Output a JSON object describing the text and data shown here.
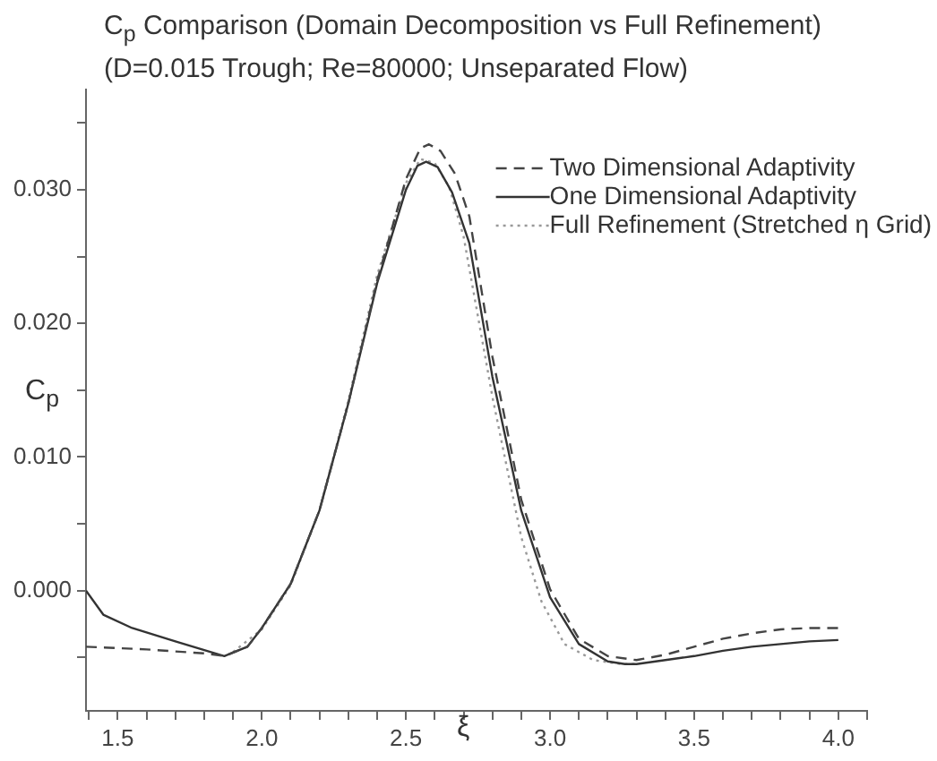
{
  "chart_data": {
    "type": "line",
    "title": "C$_{p}$ Comparison (Domain Decomposition vs Full Refinement)",
    "subtitle": "(D=0.015 Trough; Re=80000; Unseparated Flow)",
    "xlabel": "ξ",
    "ylabel": "C$_{p}$",
    "xlim": [
      1.39,
      4.1
    ],
    "ylim": [
      -0.009,
      0.0375
    ],
    "xticks": [
      {
        "value": 1.4,
        "label": null
      },
      1.5,
      {
        "value": 1.6,
        "label": null
      },
      {
        "value": 1.7,
        "label": null
      },
      {
        "value": 1.8,
        "label": null
      },
      {
        "value": 1.9,
        "label": null
      },
      {
        "value": 2.0,
        "label": "2.0"
      },
      {
        "value": 2.1,
        "label": null
      },
      {
        "value": 2.2,
        "label": null
      },
      {
        "value": 2.3,
        "label": null
      },
      {
        "value": 2.4,
        "label": null
      },
      2.5,
      {
        "value": 2.6,
        "label": null
      },
      {
        "value": 2.7,
        "label": null
      },
      {
        "value": 2.8,
        "label": null
      },
      {
        "value": 2.9,
        "label": null
      },
      {
        "value": 3.0,
        "label": "3.0"
      },
      {
        "value": 3.1,
        "label": null
      },
      {
        "value": 3.2,
        "label": null
      },
      {
        "value": 3.3,
        "label": null
      },
      {
        "value": 3.4,
        "label": null
      },
      3.5,
      {
        "value": 3.6,
        "label": null
      },
      {
        "value": 3.7,
        "label": null
      },
      {
        "value": 3.8,
        "label": null
      },
      {
        "value": 3.9,
        "label": null
      },
      {
        "value": 4.0,
        "label": "4.0"
      },
      {
        "value": 4.1,
        "label": null
      }
    ],
    "yticks": [
      {
        "value": -0.005,
        "label": null
      },
      {
        "value": 0,
        "label": "0.000"
      },
      {
        "value": 0.005,
        "label": null
      },
      {
        "value": 0.01,
        "label": "0.010"
      },
      {
        "value": 0.015,
        "label": null
      },
      {
        "value": 0.02,
        "label": "0.020"
      },
      {
        "value": 0.025,
        "label": null
      },
      {
        "value": 0.03,
        "label": "0.030"
      },
      {
        "value": 0.035,
        "label": null
      }
    ],
    "grid": false,
    "legend": "top right",
    "marker": "none",
    "series": [
      {
        "name": "Two Dimensional Adaptivity",
        "color": "#444444",
        "line_style": "dashed",
        "x": [
          1.39,
          1.6,
          1.8,
          1.87,
          1.95,
          2.0,
          2.1,
          2.2,
          2.3,
          2.4,
          2.5,
          2.55,
          2.58,
          2.62,
          2.67,
          2.72,
          2.8,
          2.9,
          3.0,
          3.1,
          3.2,
          3.3,
          3.4,
          3.5,
          3.6,
          3.7,
          3.8,
          3.9,
          4.0
        ],
        "values": [
          -0.0042,
          -0.0044,
          -0.0047,
          -0.0049,
          -0.0042,
          -0.0028,
          0.0005,
          0.006,
          0.014,
          0.0232,
          0.0308,
          0.0331,
          0.0334,
          0.0329,
          0.0312,
          0.028,
          0.0175,
          0.0068,
          0.0001,
          -0.0036,
          -0.0049,
          -0.0052,
          -0.0048,
          -0.0042,
          -0.0036,
          -0.0032,
          -0.0029,
          -0.0028,
          -0.0028
        ]
      },
      {
        "name": "One Dimensional Adaptivity",
        "color": "#333333",
        "line_style": "solid",
        "x": [
          1.39,
          1.45,
          1.55,
          1.7,
          1.87,
          1.95,
          2.0,
          2.1,
          2.2,
          2.3,
          2.4,
          2.5,
          2.54,
          2.57,
          2.61,
          2.66,
          2.72,
          2.8,
          2.9,
          3.0,
          3.1,
          3.2,
          3.26,
          3.3,
          3.4,
          3.5,
          3.6,
          3.7,
          3.8,
          3.9,
          4.0
        ],
        "values": [
          0.0,
          -0.0018,
          -0.0028,
          -0.0038,
          -0.0049,
          -0.0042,
          -0.0028,
          0.0005,
          0.006,
          0.014,
          0.023,
          0.03,
          0.0318,
          0.0321,
          0.0317,
          0.0298,
          0.026,
          0.016,
          0.006,
          -0.0005,
          -0.004,
          -0.0053,
          -0.0055,
          -0.0055,
          -0.0052,
          -0.0049,
          -0.0045,
          -0.0042,
          -0.004,
          -0.0038,
          -0.0037
        ]
      },
      {
        "name": "Full Refinement (Stretched η Grid)",
        "color": "#999999",
        "line_style": "dotted",
        "x": [
          1.9,
          2.0,
          2.1,
          2.2,
          2.3,
          2.4,
          2.5,
          2.55,
          2.6,
          2.65,
          2.7,
          2.8,
          2.9,
          2.97,
          3.05,
          3.15,
          3.25,
          3.3
        ],
        "values": [
          -0.0046,
          -0.0029,
          0.0004,
          0.006,
          0.0142,
          0.0236,
          0.0305,
          0.0323,
          0.032,
          0.0302,
          0.0265,
          0.0145,
          0.004,
          -0.0008,
          -0.004,
          -0.0052,
          -0.0055,
          -0.0055
        ]
      }
    ]
  }
}
